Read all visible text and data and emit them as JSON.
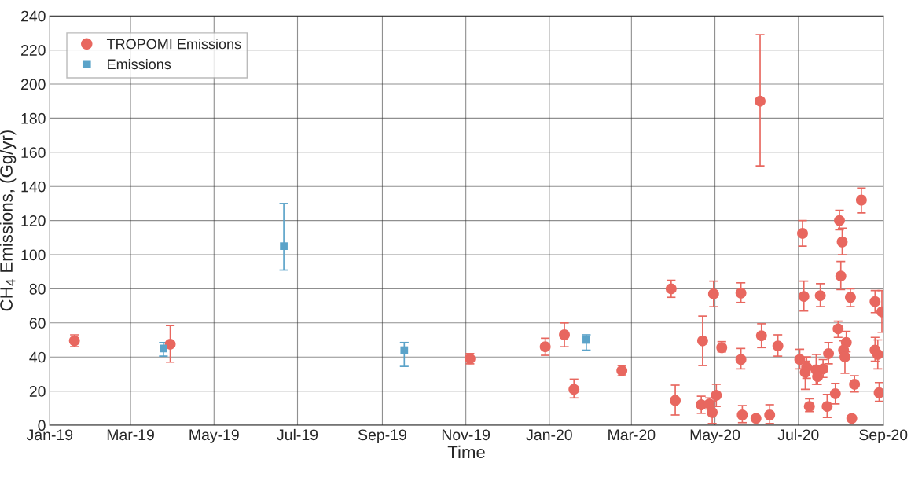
{
  "chart_data": {
    "type": "scatter",
    "xlabel": "Time",
    "ylabel": "CH$_{4}$ Emissions, (Gg/yr)",
    "xlim": [
      "2019-01-01",
      "2020-09-01"
    ],
    "xticks": [
      {
        "value": "2019-01-01",
        "label": "Jan-19"
      },
      {
        "value": "2019-03-01",
        "label": "Mar-19"
      },
      {
        "value": "2019-05-01",
        "label": "May-19"
      },
      {
        "value": "2019-07-01",
        "label": "Jul-19"
      },
      {
        "value": "2019-09-01",
        "label": "Sep-19"
      },
      {
        "value": "2019-11-01",
        "label": "Nov-19"
      },
      {
        "value": "2020-01-01",
        "label": "Jan-20"
      },
      {
        "value": "2020-03-01",
        "label": "Mar-20"
      },
      {
        "value": "2020-05-01",
        "label": "May-20"
      },
      {
        "value": "2020-07-01",
        "label": "Jul-20"
      },
      {
        "value": "2020-09-01",
        "label": "Sep-20"
      }
    ],
    "ylim": [
      0,
      240
    ],
    "yticks": [
      0,
      20,
      40,
      60,
      80,
      100,
      120,
      140,
      160,
      180,
      200,
      220,
      240
    ],
    "grid": true,
    "legend": "top left",
    "series": [
      {
        "name": "TROPOMI Emissions",
        "color": "#e8675f",
        "marker": "circle",
        "x": [
          "2019-01-19",
          "2019-03-30",
          "2019-11-04",
          "2019-12-29",
          "2020-01-12",
          "2020-01-19",
          "2020-02-23",
          "2020-03-30",
          "2020-04-02",
          "2020-04-21",
          "2020-04-22",
          "2020-04-27",
          "2020-04-29",
          "2020-04-30",
          "2020-05-02",
          "2020-05-06",
          "2020-05-20",
          "2020-05-20",
          "2020-05-21",
          "2020-05-31",
          "2020-06-03",
          "2020-06-04",
          "2020-06-10",
          "2020-06-16",
          "2020-08-16",
          "2020-07-31",
          "2020-07-04",
          "2020-08-02",
          "2020-08-01",
          "2020-07-05",
          "2020-07-17",
          "2020-08-08",
          "2020-08-26",
          "2020-08-31",
          "2020-07-30",
          "2020-08-05",
          "2020-08-03",
          "2020-08-04",
          "2020-08-26",
          "2020-08-28",
          "2020-07-23",
          "2020-07-02",
          "2020-07-07",
          "2020-07-06",
          "2020-07-14",
          "2020-07-19",
          "2020-07-15",
          "2020-08-11",
          "2020-07-28",
          "2020-08-29",
          "2020-07-09",
          "2020-07-22",
          "2020-08-09"
        ],
        "values": [
          49.5,
          47.5,
          39,
          46,
          53,
          21,
          32,
          80,
          14.5,
          12,
          49.5,
          12.5,
          7.5,
          77,
          17.5,
          45.5,
          38.5,
          77.5,
          6,
          4,
          190,
          52.5,
          6,
          46.5,
          132,
          120,
          112.5,
          107.5,
          87.5,
          75.5,
          76,
          75,
          72.5,
          66.5,
          56.5,
          48.5,
          44,
          40,
          44,
          41.5,
          42,
          38.5,
          34,
          31,
          32.5,
          33,
          28.5,
          24,
          18.5,
          19,
          11,
          11,
          4
        ],
        "errors": [
          [
            46,
            53
          ],
          [
            37,
            58.5
          ],
          [
            36,
            42
          ],
          [
            41,
            51
          ],
          [
            46,
            60
          ],
          [
            16,
            27
          ],
          [
            29,
            35
          ],
          [
            75,
            85
          ],
          [
            6,
            23.5
          ],
          [
            7,
            17
          ],
          [
            35,
            64
          ],
          [
            9.5,
            16
          ],
          [
            1,
            14
          ],
          [
            69.5,
            84.5
          ],
          [
            11,
            24
          ],
          [
            43,
            49
          ],
          [
            33,
            45
          ],
          [
            72,
            83.5
          ],
          [
            1.5,
            11.5
          ],
          null,
          [
            152,
            229
          ],
          [
            45.5,
            59.5
          ],
          [
            1,
            12
          ],
          [
            40.5,
            53
          ],
          [
            124.5,
            139
          ],
          [
            114.5,
            126
          ],
          [
            105,
            120
          ],
          [
            100,
            115.5
          ],
          [
            79.5,
            96
          ],
          [
            67,
            84.5
          ],
          [
            69.5,
            83
          ],
          [
            69.5,
            80
          ],
          [
            66,
            79
          ],
          [
            54.5,
            79
          ],
          [
            51.5,
            61
          ],
          [
            43,
            55
          ],
          [
            44,
            49.5
          ],
          [
            30.5,
            40
          ],
          [
            37.5,
            51.5
          ],
          [
            33,
            50
          ],
          [
            36,
            48.5
          ],
          [
            33,
            44.5
          ],
          [
            27.5,
            40
          ],
          [
            21,
            37.5
          ],
          [
            24,
            41.5
          ],
          [
            28,
            38.5
          ],
          [
            24,
            28.5
          ],
          [
            19.5,
            29
          ],
          [
            12.5,
            24.5
          ],
          [
            14,
            25
          ],
          [
            8,
            15.5
          ],
          [
            4.5,
            18
          ],
          null
        ]
      },
      {
        "name": "Emissions",
        "color": "#5ba3c9",
        "marker": "square",
        "x": [
          "2019-03-25",
          "2019-06-21",
          "2019-09-17",
          "2020-01-28"
        ],
        "values": [
          45,
          105,
          44,
          50
        ],
        "errors": [
          [
            40.5,
            48.5
          ],
          [
            91,
            130
          ],
          [
            34.5,
            48.5
          ],
          [
            44,
            53
          ]
        ]
      }
    ]
  }
}
